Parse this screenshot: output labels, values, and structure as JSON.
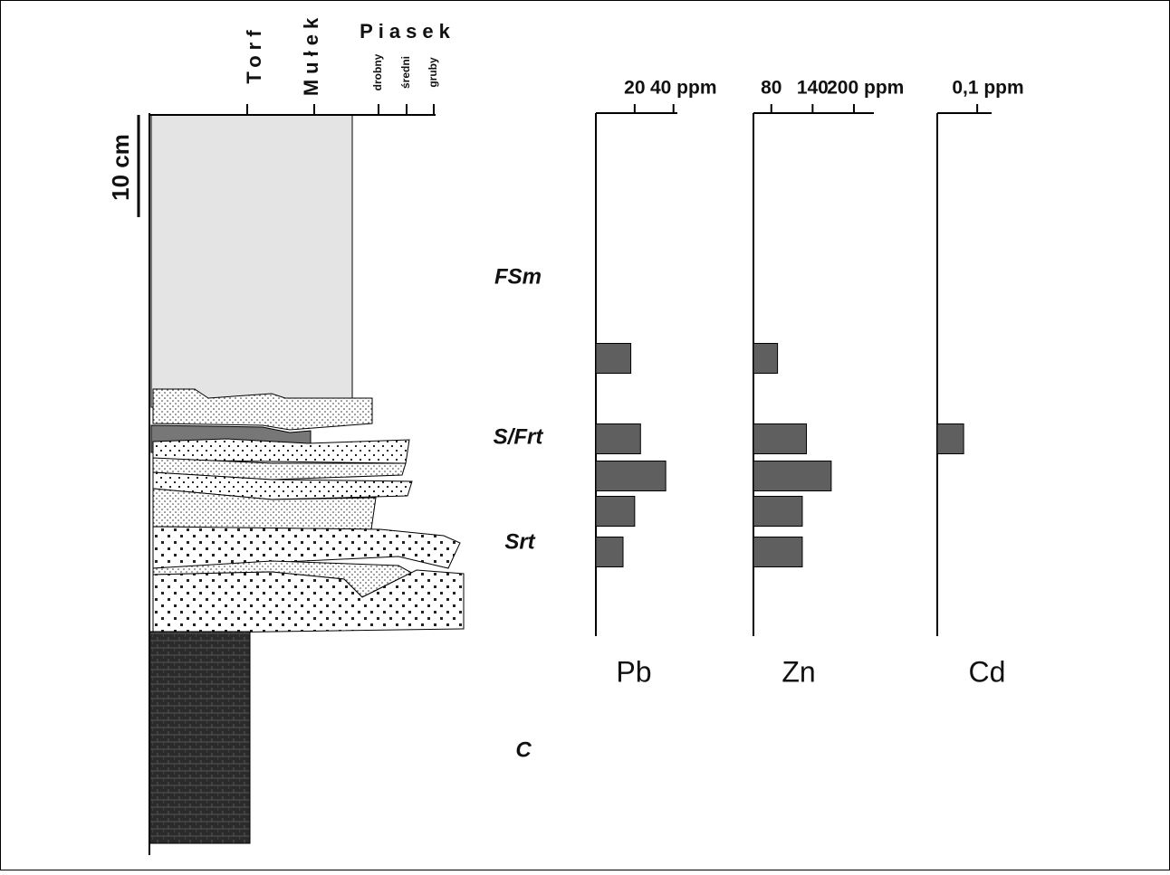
{
  "chart_data": [
    {
      "type": "bar",
      "title": "Pb",
      "orientation": "horizontal",
      "categories": [
        null,
        null,
        null,
        null,
        null
      ],
      "values": [
        18,
        23,
        36,
        20,
        14
      ],
      "color": "#5f5f5f",
      "xlim": [
        0,
        42
      ],
      "xticks": [
        20,
        {
          "value": 40,
          "label": "40 ppm"
        }
      ]
    },
    {
      "type": "bar",
      "title": "Zn",
      "orientation": "horizontal",
      "categories": [
        null,
        null,
        null,
        null,
        null
      ],
      "values": [
        89,
        131,
        167,
        125,
        125
      ],
      "color": "#5f5f5f",
      "xlim": [
        54,
        229
      ],
      "xticks": [
        80,
        140,
        {
          "value": 200,
          "label": "200 ppm"
        }
      ]
    },
    {
      "type": "bar",
      "title": "Cd",
      "orientation": "horizontal",
      "categories": [
        null,
        null,
        null,
        null,
        null
      ],
      "values": [
        null,
        0.066,
        null,
        null,
        null
      ],
      "color": "#5f5f5f",
      "xlim": [
        0,
        0.136
      ],
      "xticks": [
        {
          "value": 0.1,
          "label": "0,1 ppm"
        }
      ]
    }
  ],
  "column": {
    "grain_labels": [
      "Torf",
      "Mułek",
      "Piasek"
    ],
    "sand_labels": [
      "drobny",
      "średni",
      "gruby"
    ],
    "scale": "10 cm",
    "facies": [
      "FSm",
      "S/Frt",
      "Srt",
      "C"
    ]
  }
}
